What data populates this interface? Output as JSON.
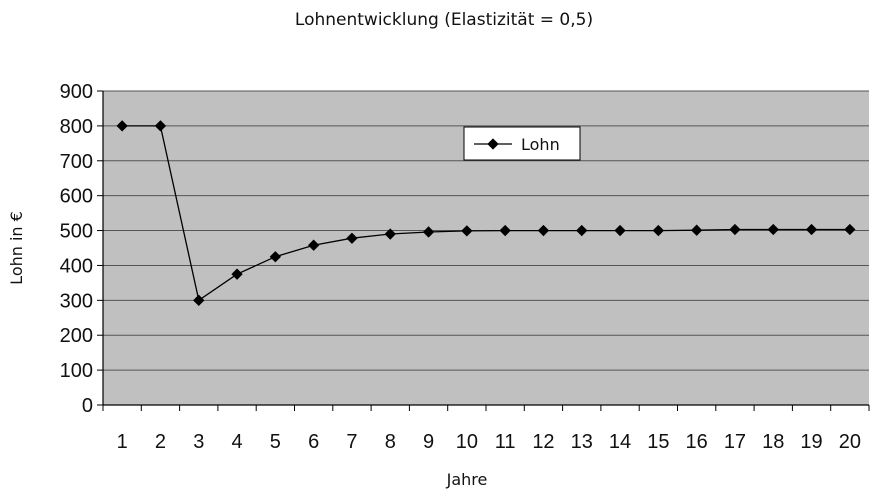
{
  "chart_data": {
    "type": "line",
    "title": "Lohnentwicklung (Elastizität = 0,5)",
    "xlabel": "Jahre",
    "ylabel": "Lohn in €",
    "categories": [
      "1",
      "2",
      "3",
      "4",
      "5",
      "6",
      "7",
      "8",
      "9",
      "10",
      "11",
      "12",
      "13",
      "14",
      "15",
      "16",
      "17",
      "18",
      "19",
      "20"
    ],
    "series": [
      {
        "name": "Lohn",
        "values": [
          800,
          800,
          300,
          375,
          425,
          458,
          478,
          490,
          496,
          499,
          500,
          500,
          500,
          500,
          500,
          501,
          503,
          503,
          503,
          503
        ]
      }
    ],
    "ylim": [
      0,
      900
    ],
    "yticks": [
      0,
      100,
      200,
      300,
      400,
      500,
      600,
      700,
      800,
      900
    ],
    "grid": true,
    "legend_position": "top-right",
    "colors": {
      "plot_background": "#c0c0c0",
      "line": "#000000",
      "gridline": "#555555"
    }
  }
}
